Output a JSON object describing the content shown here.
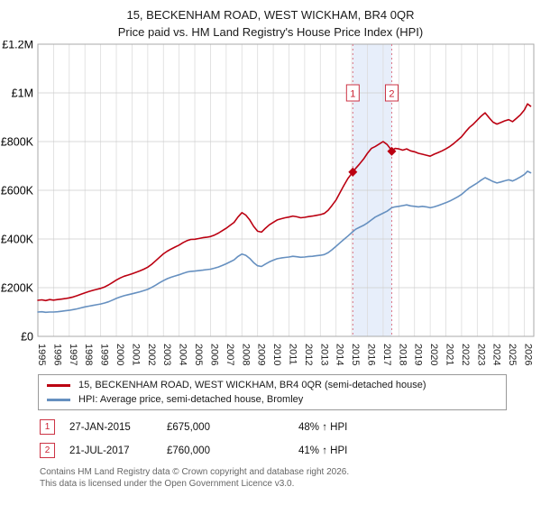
{
  "title": "15, BECKENHAM ROAD, WEST WICKHAM, BR4 0QR",
  "subtitle": "Price paid vs. HM Land Registry's House Price Index (HPI)",
  "chart_data": {
    "type": "line",
    "values_unit": "GBP thousands",
    "xlim": [
      1995,
      2026.6
    ],
    "ylim": [
      0,
      1200
    ],
    "y_ticks": [
      0,
      200,
      400,
      600,
      800,
      1000,
      1200
    ],
    "y_tick_labels": [
      "£0",
      "£200K",
      "£400K",
      "£600K",
      "£800K",
      "£1M",
      "£1.2M"
    ],
    "x_ticks": [
      1995,
      1996,
      1997,
      1998,
      1999,
      2000,
      2001,
      2002,
      2003,
      2004,
      2005,
      2006,
      2007,
      2008,
      2009,
      2010,
      2011,
      2012,
      2013,
      2014,
      2015,
      2016,
      2017,
      2018,
      2019,
      2020,
      2021,
      2022,
      2023,
      2024,
      2025,
      2026
    ],
    "grid": true,
    "legend_position": "bottom",
    "marker_label_y": 1000,
    "shaded_region": {
      "from": 2015.07,
      "to": 2017.55,
      "color": "#e7eefa"
    },
    "x": [
      1995,
      1995.25,
      1995.5,
      1995.75,
      1996,
      1996.25,
      1996.5,
      1996.75,
      1997,
      1997.25,
      1997.5,
      1997.75,
      1998,
      1998.25,
      1998.5,
      1998.75,
      1999,
      1999.25,
      1999.5,
      1999.75,
      2000,
      2000.25,
      2000.5,
      2000.75,
      2001,
      2001.25,
      2001.5,
      2001.75,
      2002,
      2002.25,
      2002.5,
      2002.75,
      2003,
      2003.25,
      2003.5,
      2003.75,
      2004,
      2004.25,
      2004.5,
      2004.75,
      2005,
      2005.25,
      2005.5,
      2005.75,
      2006,
      2006.25,
      2006.5,
      2006.75,
      2007,
      2007.25,
      2007.5,
      2007.75,
      2008,
      2008.25,
      2008.5,
      2008.75,
      2009,
      2009.25,
      2009.5,
      2009.75,
      2010,
      2010.25,
      2010.5,
      2010.75,
      2011,
      2011.25,
      2011.5,
      2011.75,
      2012,
      2012.25,
      2012.5,
      2012.75,
      2013,
      2013.25,
      2013.5,
      2013.75,
      2014,
      2014.25,
      2014.5,
      2014.75,
      2015.07,
      2015.25,
      2015.5,
      2015.75,
      2016,
      2016.25,
      2016.5,
      2016.75,
      2017,
      2017.25,
      2017.55,
      2017.75,
      2018,
      2018.25,
      2018.5,
      2018.75,
      2019,
      2019.25,
      2019.5,
      2019.75,
      2020,
      2020.25,
      2020.5,
      2020.75,
      2021,
      2021.25,
      2021.5,
      2021.75,
      2022,
      2022.25,
      2022.5,
      2022.75,
      2023,
      2023.25,
      2023.5,
      2023.75,
      2024,
      2024.25,
      2024.5,
      2024.75,
      2025,
      2025.25,
      2025.5,
      2025.75,
      2026,
      2026.2,
      2026.4
    ],
    "series": [
      {
        "name": "15, BECKENHAM ROAD, WEST WICKHAM, BR4 0QR (semi-detached house)",
        "color": "#bb0011",
        "values": [
          148,
          150,
          147,
          151,
          149,
          151,
          153,
          155,
          158,
          162,
          167,
          173,
          179,
          184,
          189,
          193,
          197,
          203,
          211,
          221,
          231,
          240,
          247,
          252,
          257,
          263,
          269,
          276,
          284,
          296,
          310,
          325,
          339,
          350,
          359,
          367,
          375,
          385,
          393,
          398,
          399,
          402,
          405,
          407,
          410,
          416,
          424,
          434,
          444,
          456,
          468,
          490,
          508,
          498,
          478,
          452,
          432,
          428,
          444,
          458,
          468,
          478,
          483,
          487,
          490,
          494,
          491,
          487,
          489,
          492,
          494,
          497,
          500,
          505,
          518,
          538,
          560,
          590,
          620,
          648,
          675,
          690,
          708,
          728,
          752,
          772,
          780,
          790,
          800,
          788,
          763,
          772,
          770,
          765,
          770,
          762,
          758,
          752,
          748,
          744,
          740,
          748,
          755,
          762,
          770,
          780,
          792,
          806,
          820,
          840,
          858,
          872,
          888,
          905,
          918,
          898,
          880,
          872,
          878,
          885,
          890,
          882,
          896,
          910,
          930,
          955,
          945
        ]
      },
      {
        "name": "HPI: Average price, semi-detached house, Bromley",
        "color": "#6690c0",
        "values": [
          100,
          101,
          99,
          100,
          100,
          101,
          103,
          105,
          107,
          110,
          113,
          117,
          121,
          124,
          127,
          130,
          133,
          137,
          142,
          149,
          156,
          162,
          167,
          171,
          175,
          179,
          183,
          188,
          193,
          201,
          210,
          220,
          229,
          237,
          243,
          248,
          253,
          259,
          264,
          267,
          268,
          270,
          272,
          274,
          276,
          280,
          285,
          291,
          298,
          306,
          314,
          328,
          338,
          333,
          320,
          303,
          290,
          287,
          297,
          306,
          313,
          319,
          322,
          324,
          326,
          329,
          327,
          325,
          326,
          328,
          329,
          331,
          333,
          336,
          344,
          356,
          370,
          384,
          398,
          412,
          430,
          440,
          448,
          456,
          466,
          478,
          490,
          498,
          506,
          514,
          528,
          532,
          534,
          537,
          540,
          536,
          534,
          532,
          534,
          532,
          528,
          532,
          537,
          543,
          549,
          556,
          564,
          573,
          583,
          597,
          610,
          620,
          630,
          642,
          652,
          644,
          636,
          630,
          634,
          639,
          643,
          638,
          646,
          655,
          665,
          678,
          672
        ]
      }
    ],
    "markers": [
      {
        "label": "1",
        "x": 2015.07,
        "value": 675
      },
      {
        "label": "2",
        "x": 2017.55,
        "value": 760
      }
    ]
  },
  "transactions": [
    {
      "num": "1",
      "date": "27-JAN-2015",
      "price": "£675,000",
      "hpi_change": "48% ↑ HPI"
    },
    {
      "num": "2",
      "date": "21-JUL-2017",
      "price": "£760,000",
      "hpi_change": "41% ↑ HPI"
    }
  ],
  "footer": {
    "line1": "Contains HM Land Registry data © Crown copyright and database right 2026.",
    "line2": "This data is licensed under the Open Government Licence v3.0."
  }
}
